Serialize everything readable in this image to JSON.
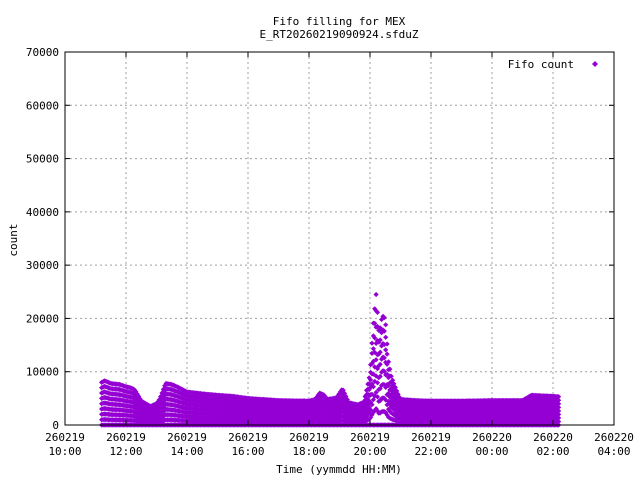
{
  "colors": {
    "series": "#9400d3",
    "grid": "#a0a0a0",
    "axis": "#000000",
    "background": "#ffffff"
  },
  "chart_data": {
    "type": "scatter",
    "title": "Fifo filling for MEX",
    "subtitle": "E_RT20260219090924.sfduZ",
    "xlabel": "Time (yymmdd HH:MM)",
    "ylabel": "count",
    "grid": true,
    "legend_position": "top-right",
    "marker": "diamond",
    "xlim_hours": [
      10,
      28
    ],
    "ylim": [
      0,
      70000
    ],
    "x_ticks": [
      {
        "h": 10,
        "date": "260219",
        "time": "10:00"
      },
      {
        "h": 12,
        "date": "260219",
        "time": "12:00"
      },
      {
        "h": 14,
        "date": "260219",
        "time": "14:00"
      },
      {
        "h": 16,
        "date": "260219",
        "time": "16:00"
      },
      {
        "h": 18,
        "date": "260219",
        "time": "18:00"
      },
      {
        "h": 20,
        "date": "260219",
        "time": "20:00"
      },
      {
        "h": 22,
        "date": "260219",
        "time": "22:00"
      },
      {
        "h": 24,
        "date": "260220",
        "time": "00:00"
      },
      {
        "h": 26,
        "date": "260220",
        "time": "02:00"
      },
      {
        "h": 28,
        "date": "260220",
        "time": "04:00"
      }
    ],
    "y_ticks": [
      0,
      10000,
      20000,
      30000,
      40000,
      50000,
      60000,
      70000
    ],
    "series": [
      {
        "name": "Fifo count",
        "envelope": {
          "hours": [
            11.2,
            11.3,
            11.5,
            11.8,
            12.0,
            12.2,
            12.3,
            12.5,
            12.8,
            13.0,
            13.1,
            13.3,
            13.5,
            13.7,
            14.0,
            14.3,
            14.6,
            15.0,
            15.5,
            16.0,
            17.0,
            18.0,
            18.2,
            18.35,
            18.5,
            18.6,
            18.9,
            19.1,
            19.3,
            19.6,
            19.8,
            20.0,
            20.1,
            20.2,
            20.3,
            20.4,
            20.5,
            20.6,
            20.7,
            20.9,
            21.0,
            21.5,
            22.0,
            23.0,
            24.0,
            25.0,
            25.3,
            25.6,
            26.0,
            26.2
          ],
          "max": [
            8000,
            8300,
            7800,
            7600,
            7200,
            6900,
            6500,
            4500,
            3500,
            4000,
            4800,
            7800,
            7600,
            7100,
            6200,
            6000,
            5800,
            5600,
            5400,
            5000,
            4600,
            4500,
            4800,
            6000,
            5600,
            4800,
            5100,
            6800,
            4200,
            3800,
            4300,
            9500,
            18500,
            24500,
            17000,
            20500,
            20000,
            12000,
            9000,
            6000,
            4800,
            4600,
            4500,
            4500,
            4600,
            4600,
            5600,
            5500,
            5400,
            5300
          ]
        },
        "bands": 8
      }
    ]
  }
}
